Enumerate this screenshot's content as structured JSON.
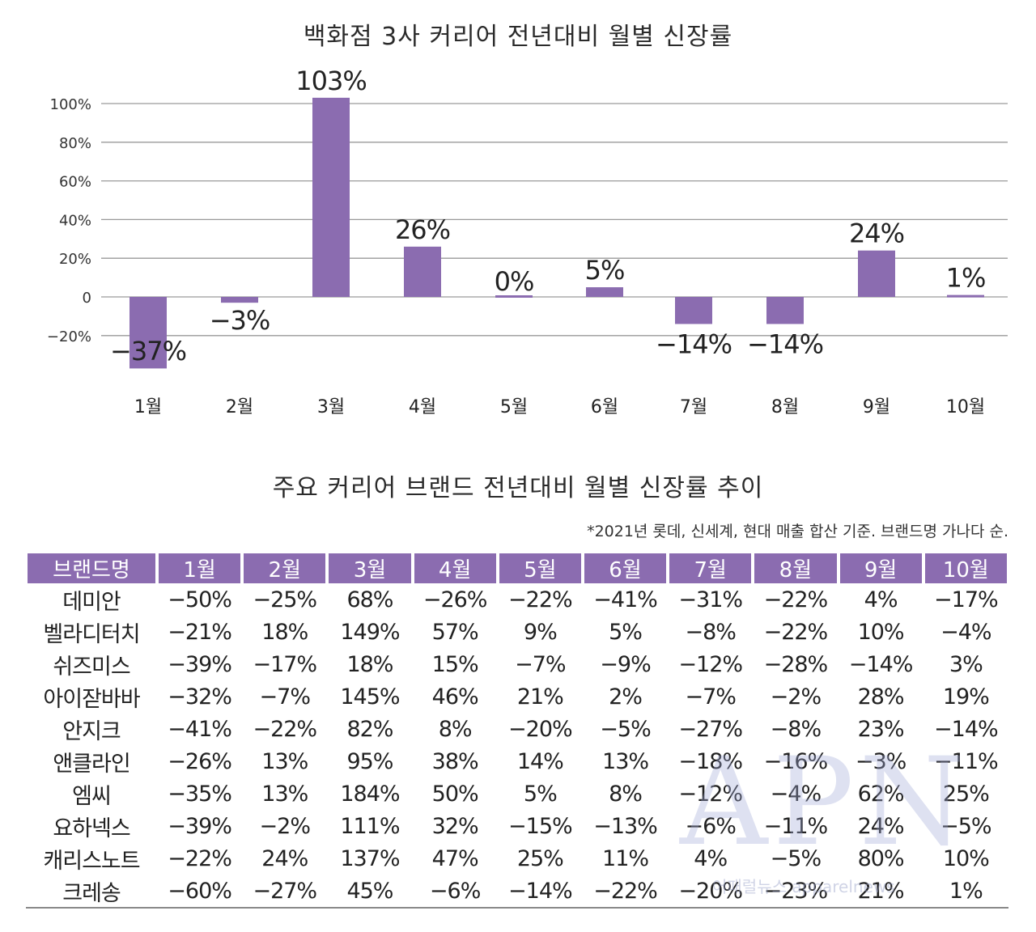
{
  "chart_data": {
    "type": "bar",
    "title": "백화점 3사 커리어 전년대비 월별 신장률",
    "categories": [
      "1월",
      "2월",
      "3월",
      "4월",
      "5월",
      "6월",
      "7월",
      "8월",
      "9월",
      "10월"
    ],
    "values": [
      -37,
      -3,
      103,
      26,
      0,
      5,
      -14,
      -14,
      24,
      1
    ],
    "value_labels": [
      "−37%",
      "−3%",
      "103%",
      "26%",
      "0%",
      "5%",
      "−14%",
      "−14%",
      "24%",
      "1%"
    ],
    "ylim": [
      -20,
      100
    ],
    "yticks": [
      100,
      80,
      60,
      40,
      20,
      0,
      -20
    ],
    "ytick_labels": [
      "100%",
      "80%",
      "60%",
      "40%",
      "20%",
      "0",
      "−20%"
    ],
    "xlabel": "",
    "ylabel": "",
    "grid": true,
    "bar_color": "#8b6cb0"
  },
  "table": {
    "title": "주요 커리어 브랜드 전년대비 월별 신장률 추이",
    "note": "*2021년 롯데, 신세계, 현대 매출 합산 기준. 브랜드명 가나다 순.",
    "headers": [
      "브랜드명",
      "1월",
      "2월",
      "3월",
      "4월",
      "5월",
      "6월",
      "7월",
      "8월",
      "9월",
      "10월"
    ],
    "rows": [
      [
        "데미안",
        "−50%",
        "−25%",
        "68%",
        "−26%",
        "−22%",
        "−41%",
        "−31%",
        "−22%",
        "4%",
        "−17%"
      ],
      [
        "벨라디터치",
        "−21%",
        "18%",
        "149%",
        "57%",
        "9%",
        "5%",
        "−8%",
        "−22%",
        "10%",
        "−4%"
      ],
      [
        "쉬즈미스",
        "−39%",
        "−17%",
        "18%",
        "15%",
        "−7%",
        "−9%",
        "−12%",
        "−28%",
        "−14%",
        "3%"
      ],
      [
        "아이잗바바",
        "−32%",
        "−7%",
        "145%",
        "46%",
        "21%",
        "2%",
        "−7%",
        "−2%",
        "28%",
        "19%"
      ],
      [
        "안지크",
        "−41%",
        "−22%",
        "82%",
        "8%",
        "−20%",
        "−5%",
        "−27%",
        "−8%",
        "23%",
        "−14%"
      ],
      [
        "앤클라인",
        "−26%",
        "13%",
        "95%",
        "38%",
        "14%",
        "13%",
        "−18%",
        "−16%",
        "−3%",
        "−11%"
      ],
      [
        "엠씨",
        "−35%",
        "13%",
        "184%",
        "50%",
        "5%",
        "8%",
        "−12%",
        "−4%",
        "62%",
        "25%"
      ],
      [
        "요하넥스",
        "−39%",
        "−2%",
        "111%",
        "32%",
        "−15%",
        "−13%",
        "−6%",
        "−11%",
        "24%",
        "−5%"
      ],
      [
        "캐리스노트",
        "−22%",
        "24%",
        "137%",
        "47%",
        "25%",
        "11%",
        "4%",
        "−5%",
        "80%",
        "10%"
      ],
      [
        "크레송",
        "−60%",
        "−27%",
        "45%",
        "−6%",
        "−14%",
        "−22%",
        "−20%",
        "−23%",
        "21%",
        "1%"
      ]
    ]
  },
  "watermark": {
    "logo": "APN",
    "sub": "어패럴뉴스 apparelnews"
  }
}
